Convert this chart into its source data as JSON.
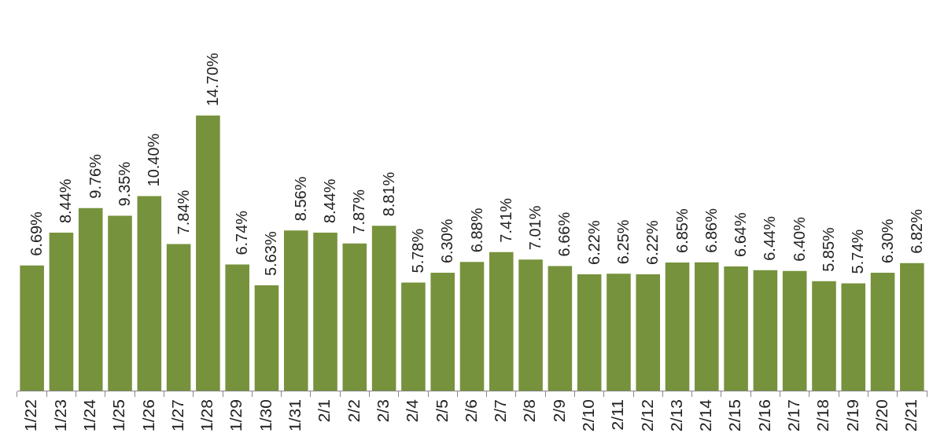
{
  "chart_data": {
    "type": "bar",
    "categories": [
      "1/22",
      "1/23",
      "1/24",
      "1/25",
      "1/26",
      "1/27",
      "1/28",
      "1/29",
      "1/30",
      "1/31",
      "2/1",
      "2/2",
      "2/3",
      "2/4",
      "2/5",
      "2/6",
      "2/7",
      "2/8",
      "2/9",
      "2/10",
      "2/11",
      "2/12",
      "2/13",
      "2/14",
      "2/15",
      "2/16",
      "2/17",
      "2/18",
      "2/19",
      "2/20",
      "2/21"
    ],
    "values": [
      6.69,
      8.44,
      9.76,
      9.35,
      10.4,
      7.84,
      14.7,
      6.74,
      5.63,
      8.56,
      8.44,
      7.87,
      8.81,
      5.78,
      6.3,
      6.88,
      7.41,
      7.01,
      6.66,
      6.22,
      6.25,
      6.22,
      6.85,
      6.86,
      6.64,
      6.44,
      6.4,
      5.85,
      5.74,
      6.3,
      6.82
    ],
    "value_labels": [
      "6.69%",
      "8.44%",
      "9.76%",
      "9.35%",
      "10.40%",
      "7.84%",
      "14.70%",
      "6.74%",
      "5.63%",
      "8.56%",
      "8.44%",
      "7.87%",
      "8.81%",
      "5.78%",
      "6.30%",
      "6.88%",
      "7.41%",
      "7.01%",
      "6.66%",
      "6.22%",
      "6.25%",
      "6.22%",
      "6.85%",
      "6.86%",
      "6.64%",
      "6.44%",
      "6.40%",
      "5.85%",
      "5.74%",
      "6.30%",
      "6.82%"
    ],
    "color": "#76923c",
    "grid": false,
    "legend": false,
    "tick_labels": "x"
  }
}
